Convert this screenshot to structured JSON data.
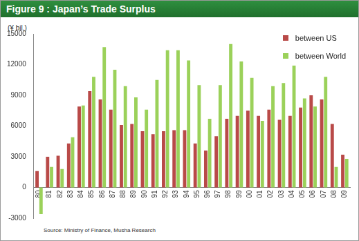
{
  "chart_data": {
    "type": "bar",
    "title": "Figure 9 : Japan’s Trade Surplus",
    "y_label": "(¥ bil.)",
    "annotations": [
      "Source: Ministry of Finance, Musha Research"
    ],
    "categories": [
      "80",
      "81",
      "82",
      "83",
      "84",
      "85",
      "86",
      "87",
      "88",
      "89",
      "90",
      "91",
      "92",
      "93",
      "94",
      "95",
      "96",
      "97",
      "98",
      "99",
      "00",
      "01",
      "02",
      "03",
      "04",
      "05",
      "06",
      "07",
      "08",
      "09"
    ],
    "series": [
      {
        "name": "between US",
        "color": "#b94a48",
        "values": [
          1600,
          3000,
          3100,
          4300,
          7900,
          9400,
          8600,
          7600,
          6100,
          6200,
          5500,
          5200,
          5500,
          5600,
          5600,
          4300,
          3600,
          5000,
          6700,
          7000,
          7500,
          7000,
          7600,
          6600,
          7000,
          7800,
          9000,
          8600,
          6200,
          3200
        ]
      },
      {
        "name": "between World",
        "color": "#9bd15a",
        "values": [
          -2600,
          2000,
          1800,
          4900,
          8000,
          10800,
          13700,
          11500,
          9900,
          8800,
          7600,
          10500,
          13400,
          13400,
          12400,
          10000,
          6700,
          10000,
          14000,
          12300,
          10700,
          6500,
          9900,
          10200,
          11900,
          8700,
          7900,
          10800,
          2000,
          2800
        ]
      }
    ],
    "ylim": [
      -3000,
      15000
    ],
    "yticks": [
      -3000,
      0,
      3000,
      6000,
      9000,
      12000,
      15000
    ],
    "grid": false,
    "legend": "top-right"
  }
}
